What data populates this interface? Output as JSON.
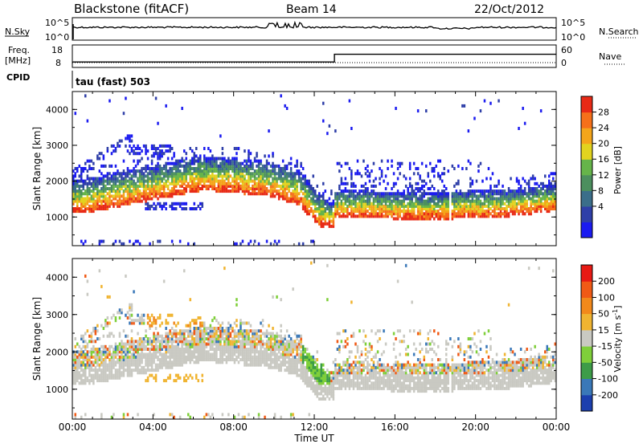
{
  "header": {
    "station": "Blackstone (fitACF)",
    "beam": "Beam 14",
    "date": "22/Oct/2012"
  },
  "noise_panel": {
    "left_label": "N.Sky",
    "right_label": "N.Search",
    "ytick_top": "10^5",
    "ytick_bottom": "10^0"
  },
  "freq_panel": {
    "left_label_1": "Freq.",
    "left_label_2": "[MHz]",
    "right_label": "Nave",
    "left_ticks": [
      "18",
      "8"
    ],
    "right_ticks": [
      "60",
      "0"
    ],
    "freq_mhz_before": 10,
    "freq_mhz_after": 14,
    "switch_time": "13:00"
  },
  "cpid_panel": {
    "label": "CPID",
    "value": "tau (fast) 503"
  },
  "x_axis": {
    "label": "Time UT",
    "ticks": [
      "00:00",
      "04:00",
      "08:00",
      "12:00",
      "16:00",
      "20:00",
      "00:00"
    ]
  },
  "chart_data": [
    {
      "type": "heatmap",
      "name": "power",
      "ylabel": "Slant Range [km]",
      "yticks": [
        "1000",
        "2000",
        "3000",
        "4000"
      ],
      "ylim": [
        200,
        4500
      ],
      "xlim_hours": [
        0,
        24
      ],
      "colorbar_label": "Power [dB]",
      "colorbar_ticks": [
        "28",
        "24",
        "20",
        "16",
        "12",
        "8",
        "4"
      ],
      "colorbar_colors": [
        "#1b1bf0",
        "#2f3fa8",
        "#3b6e8a",
        "#4c8f5e",
        "#66b44a",
        "#e2d31f",
        "#f4a51b",
        "#f5701a",
        "#e82a16"
      ]
    },
    {
      "type": "heatmap",
      "name": "velocity",
      "ylabel": "Slant Range [km]",
      "yticks": [
        "1000",
        "2000",
        "3000",
        "4000"
      ],
      "ylim": [
        200,
        4500
      ],
      "xlim_hours": [
        0,
        24
      ],
      "colorbar_label": "Velocity [m s",
      "colorbar_label_sup": "-1",
      "colorbar_label_end": "]",
      "colorbar_ticks": [
        "200",
        "100",
        "50",
        "15",
        "-15",
        "-50",
        "-100",
        "-200"
      ],
      "colorbar_colors": [
        "#1c3fae",
        "#3a78b8",
        "#3d9c48",
        "#7fcf3a",
        "#c9c9c2",
        "#f0b431",
        "#f2891b",
        "#f05a16",
        "#e81a14"
      ]
    }
  ]
}
